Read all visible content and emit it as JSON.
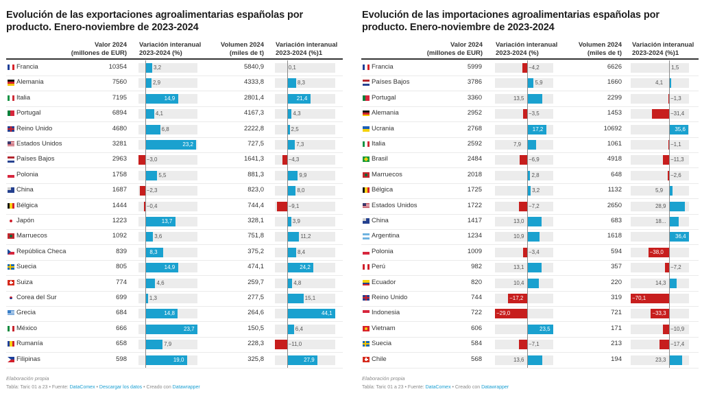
{
  "colors": {
    "positive": "#1aa1cf",
    "negative": "#c71e1d",
    "bar_bg": "#ececec",
    "zero_line": "#888888"
  },
  "chart_data": [
    {
      "type": "table",
      "title": "Evolución de las exportaciones agroalimentarias españolas por producto. Enero-noviembre de 2023-2024",
      "columns": [
        "",
        "Valor 2024 (millones de EUR)",
        "Variación interanual 2023-2024 (%)",
        "Volumen 2024 (miles de t)",
        "Variación interanual 2023-2024 (%)1"
      ],
      "headers": {
        "value_l1": "Valor 2024",
        "value_l2": "(millones de EUR)",
        "var1_l1": "Variación interanual",
        "var1_l2": "2023-2024 (%)",
        "vol_l1": "Volumen 2024",
        "vol_l2": "(miles de t)",
        "var2_l1": "Variación interanual",
        "var2_l2": "2023-2024 (%)1"
      },
      "var1_range": [
        -3.0,
        23.7
      ],
      "var2_range": [
        -11.0,
        44.1
      ],
      "rows": [
        {
          "country": "Francia",
          "flag": "fr",
          "value": "10354",
          "var1": 3.2,
          "var1_label": "3,2",
          "volume": "5840,9",
          "var2": 0.1,
          "var2_label": "0,1"
        },
        {
          "country": "Alemania",
          "flag": "de",
          "value": "7560",
          "var1": 2.9,
          "var1_label": "2,9",
          "volume": "4333,8",
          "var2": 8.3,
          "var2_label": "8,3"
        },
        {
          "country": "Italia",
          "flag": "it",
          "value": "7195",
          "var1": 14.9,
          "var1_label": "14,9",
          "volume": "2801,4",
          "var2": 21.4,
          "var2_label": "21,4"
        },
        {
          "country": "Portugal",
          "flag": "pt",
          "value": "6894",
          "var1": 4.1,
          "var1_label": "4,1",
          "volume": "4167,3",
          "var2": 4.3,
          "var2_label": "4,3"
        },
        {
          "country": "Reino Unido",
          "flag": "gb",
          "value": "4680",
          "var1": 6.8,
          "var1_label": "6,8",
          "volume": "2222,8",
          "var2": 2.5,
          "var2_label": "2,5"
        },
        {
          "country": "Estados Unidos",
          "flag": "us",
          "value": "3281",
          "var1": 23.2,
          "var1_label": "23,2",
          "volume": "727,5",
          "var2": 7.3,
          "var2_label": "7,3"
        },
        {
          "country": "Países Bajos",
          "flag": "nl",
          "value": "2963",
          "var1": -3.0,
          "var1_label": "−3,0",
          "volume": "1641,3",
          "var2": -4.3,
          "var2_label": "−4,3"
        },
        {
          "country": "Polonia",
          "flag": "pl",
          "value": "1758",
          "var1": 5.5,
          "var1_label": "5,5",
          "volume": "881,3",
          "var2": 9.9,
          "var2_label": "9,9"
        },
        {
          "country": "China",
          "flag": "cn",
          "value": "1687",
          "var1": -2.3,
          "var1_label": "−2,3",
          "volume": "823,0",
          "var2": 8.0,
          "var2_label": "8,0"
        },
        {
          "country": "Bélgica",
          "flag": "be",
          "value": "1444",
          "var1": -0.4,
          "var1_label": "−0,4",
          "volume": "744,4",
          "var2": -9.1,
          "var2_label": "−9,1"
        },
        {
          "country": "Japón",
          "flag": "jp",
          "value": "1223",
          "var1": 13.7,
          "var1_label": "13,7",
          "volume": "328,1",
          "var2": 3.9,
          "var2_label": "3,9"
        },
        {
          "country": "Marruecos",
          "flag": "ma",
          "value": "1092",
          "var1": 3.6,
          "var1_label": "3,6",
          "volume": "751,8",
          "var2": 11.2,
          "var2_label": "11,2"
        },
        {
          "country": "República Checa",
          "flag": "cz",
          "value": "839",
          "var1": 8.3,
          "var1_label": "8,3",
          "volume": "375,2",
          "var2": 8.4,
          "var2_label": "8,4"
        },
        {
          "country": "Suecia",
          "flag": "se",
          "value": "805",
          "var1": 14.9,
          "var1_label": "14,9",
          "volume": "474,1",
          "var2": 24.2,
          "var2_label": "24,2"
        },
        {
          "country": "Suiza",
          "flag": "ch",
          "value": "774",
          "var1": 4.6,
          "var1_label": "4,6",
          "volume": "259,7",
          "var2": 4.8,
          "var2_label": "4,8"
        },
        {
          "country": "Corea del Sur",
          "flag": "kr",
          "value": "699",
          "var1": 1.3,
          "var1_label": "1,3",
          "volume": "277,5",
          "var2": 15.1,
          "var2_label": "15,1"
        },
        {
          "country": "Grecia",
          "flag": "gr",
          "value": "684",
          "var1": 14.8,
          "var1_label": "14,8",
          "volume": "264,6",
          "var2": 44.1,
          "var2_label": "44,1"
        },
        {
          "country": "México",
          "flag": "mx",
          "value": "666",
          "var1": 23.7,
          "var1_label": "23,7",
          "volume": "150,5",
          "var2": 6.4,
          "var2_label": "6,4"
        },
        {
          "country": "Rumanía",
          "flag": "ro",
          "value": "658",
          "var1": 7.9,
          "var1_label": "7,9",
          "volume": "228,3",
          "var2": -11.0,
          "var2_label": "−11,0"
        },
        {
          "country": "Filipinas",
          "flag": "ph",
          "value": "598",
          "var1": 19.0,
          "var1_label": "19,0",
          "volume": "325,8",
          "var2": 27.9,
          "var2_label": "27,9"
        }
      ],
      "footer": {
        "note": "Elaboración propia",
        "source_prefix": "Tabla: Taric 01 a 23 • Fuente: ",
        "source_link": "DataComex",
        "download_sep": " • ",
        "download_link": "Descargar los datos",
        "created_sep": " • Creado con ",
        "created_link": "Datawrapper"
      }
    },
    {
      "type": "table",
      "title": "Evolución de las importaciones agroalimentarias españolas por producto. Enero-noviembre de 2023-2024",
      "columns": [
        "",
        "Valor 2024 (millones de EUR)",
        "Variación interanual 2023-2024 (%)",
        "Volumen 2024 (miles de t)",
        "Variación interanual 2023-2024 (%)1"
      ],
      "headers": {
        "value_l1": "Valor 2024",
        "value_l2": "(millones de EUR)",
        "var1_l1": "Variación interanual",
        "var1_l2": "2023-2024 (%)",
        "vol_l1": "Volumen 2024",
        "vol_l2": "(miles de t)",
        "var2_l1": "Variación interanual",
        "var2_l2": "2023-2024 (%)1"
      },
      "var1_range": [
        -29.0,
        23.5
      ],
      "var2_range": [
        -70.1,
        36.4
      ],
      "rows": [
        {
          "country": "Francia",
          "flag": "fr",
          "value": "5999",
          "var1": -4.2,
          "var1_label": "−4,2",
          "volume": "6626",
          "var2": 1.5,
          "var2_label": "1,5"
        },
        {
          "country": "Países Bajos",
          "flag": "nl",
          "value": "3786",
          "var1": 5.9,
          "var1_label": "5,9",
          "volume": "1660",
          "var2": 4.1,
          "var2_label": "4,1"
        },
        {
          "country": "Portugal",
          "flag": "pt",
          "value": "3360",
          "var1": 13.5,
          "var1_label": "13,5",
          "volume": "2299",
          "var2": -1.3,
          "var2_label": "−1,3"
        },
        {
          "country": "Alemania",
          "flag": "de",
          "value": "2952",
          "var1": -3.5,
          "var1_label": "−3,5",
          "volume": "1453",
          "var2": -31.4,
          "var2_label": "−31,4"
        },
        {
          "country": "Ucrania",
          "flag": "ua",
          "value": "2768",
          "var1": 17.2,
          "var1_label": "17,2",
          "volume": "10692",
          "var2": 35.6,
          "var2_label": "35,6"
        },
        {
          "country": "Italia",
          "flag": "it",
          "value": "2592",
          "var1": 7.9,
          "var1_label": "7,9",
          "volume": "1061",
          "var2": -1.1,
          "var2_label": "−1,1"
        },
        {
          "country": "Brasil",
          "flag": "br",
          "value": "2484",
          "var1": -6.9,
          "var1_label": "−6,9",
          "volume": "4918",
          "var2": -11.3,
          "var2_label": "−11,3"
        },
        {
          "country": "Marruecos",
          "flag": "ma",
          "value": "2018",
          "var1": 2.8,
          "var1_label": "2,8",
          "volume": "648",
          "var2": -2.6,
          "var2_label": "−2,6"
        },
        {
          "country": "Bélgica",
          "flag": "be",
          "value": "1725",
          "var1": 3.2,
          "var1_label": "3,2",
          "volume": "1132",
          "var2": 5.9,
          "var2_label": "5,9"
        },
        {
          "country": "Estados Unidos",
          "flag": "us",
          "value": "1722",
          "var1": -7.2,
          "var1_label": "−7,2",
          "volume": "2650",
          "var2": 28.9,
          "var2_label": "28,9"
        },
        {
          "country": "China",
          "flag": "cn",
          "value": "1417",
          "var1": 13.0,
          "var1_label": "13,0",
          "volume": "683",
          "var2": 18.0,
          "var2_label": "18..."
        },
        {
          "country": "Argentina",
          "flag": "ar",
          "value": "1234",
          "var1": 10.9,
          "var1_label": "10,9",
          "volume": "1618",
          "var2": 36.4,
          "var2_label": "36,4"
        },
        {
          "country": "Polonia",
          "flag": "pl",
          "value": "1009",
          "var1": -3.4,
          "var1_label": "−3,4",
          "volume": "594",
          "var2": -38.0,
          "var2_label": "−38,0"
        },
        {
          "country": "Perú",
          "flag": "pe",
          "value": "982",
          "var1": 13.1,
          "var1_label": "13,1",
          "volume": "357",
          "var2": -7.2,
          "var2_label": "−7,2"
        },
        {
          "country": "Ecuador",
          "flag": "ec",
          "value": "820",
          "var1": 10.4,
          "var1_label": "10,4",
          "volume": "220",
          "var2": 14.3,
          "var2_label": "14,3"
        },
        {
          "country": "Reino Unido",
          "flag": "gb",
          "value": "744",
          "var1": -17.2,
          "var1_label": "−17,2",
          "volume": "319",
          "var2": -70.1,
          "var2_label": "−70,1"
        },
        {
          "country": "Indonesia",
          "flag": "id",
          "value": "722",
          "var1": -29.0,
          "var1_label": "−29,0",
          "volume": "721",
          "var2": -33.3,
          "var2_label": "−33,3"
        },
        {
          "country": "Vietnam",
          "flag": "vn",
          "value": "606",
          "var1": 23.5,
          "var1_label": "23,5",
          "volume": "171",
          "var2": -10.9,
          "var2_label": "−10,9"
        },
        {
          "country": "Suecia",
          "flag": "se",
          "value": "584",
          "var1": -7.1,
          "var1_label": "−7,1",
          "volume": "213",
          "var2": -17.4,
          "var2_label": "−17,4"
        },
        {
          "country": "Chile",
          "flag": "cl",
          "value": "568",
          "var1": 13.6,
          "var1_label": "13,6",
          "volume": "194",
          "var2": 23.3,
          "var2_label": "23,3"
        }
      ],
      "footer": {
        "note": "Elaboración propia",
        "source_prefix": "Tabla: Taric 01 a 23 • Fuente: ",
        "source_link": "DataComex",
        "created_sep": " • Creado con ",
        "created_link": "Datawrapper"
      }
    }
  ]
}
